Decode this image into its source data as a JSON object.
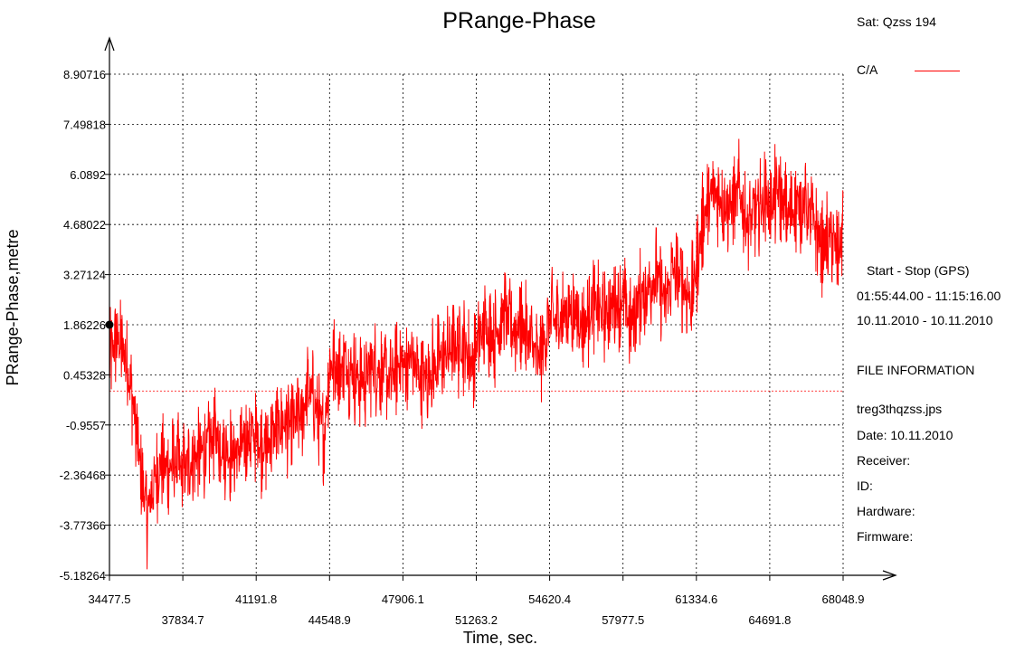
{
  "chart_data": {
    "type": "line",
    "title": "PRange-Phase",
    "xlabel": "Time, sec.",
    "ylabel": "PRange-Phase,metre",
    "xlim": [
      34477.5,
      68048.9
    ],
    "ylim": [
      -5.18264,
      8.90716
    ],
    "grid": true,
    "x_ticks": [
      34477.5,
      37834.7,
      41191.8,
      44548.9,
      47906.1,
      51263.2,
      54620.4,
      57977.5,
      61334.6,
      64691.8,
      68048.9
    ],
    "x_tick_labels": [
      "34477.5",
      "37834.7",
      "41191.8",
      "44548.9",
      "47906.1",
      "51263.2",
      "54620.4",
      "57977.5",
      "61334.6",
      "64691.8",
      "68048.9"
    ],
    "y_ticks": [
      8.90716,
      7.49818,
      6.0892,
      4.68022,
      3.27124,
      1.86226,
      0.45328,
      -0.9557,
      -2.36468,
      -3.77366,
      -5.18264
    ],
    "y_tick_labels": [
      "8.90716",
      "7.49818",
      "6.0892",
      "4.68022",
      "3.27124",
      "1.86226",
      "0.45328",
      "-0.9557",
      "-2.36468",
      "-3.77366",
      "-5.18264"
    ],
    "series": [
      {
        "name": "C/A",
        "color": "#ff0000",
        "x": [
          34477.5,
          34800,
          35200,
          35600,
          35900,
          36200,
          36500,
          36800,
          37100,
          37500,
          37834.7,
          38200,
          38600,
          39000,
          39400,
          39800,
          40200,
          40600,
          41000,
          41191.8,
          41600,
          42000,
          42400,
          42800,
          43200,
          43600,
          44000,
          44300,
          44548.9,
          44900,
          45300,
          45700,
          46100,
          46500,
          46900,
          47300,
          47700,
          47906.1,
          48300,
          48700,
          49100,
          49500,
          49900,
          50300,
          50700,
          51100,
          51263.2,
          51700,
          52100,
          52500,
          52900,
          53300,
          53700,
          54100,
          54620.4,
          55000,
          55400,
          55800,
          56200,
          56600,
          57000,
          57400,
          57977.5,
          58300,
          58700,
          59100,
          59500,
          59900,
          60300,
          60700,
          61100,
          61334.6,
          61700,
          62100,
          62500,
          62900,
          63300,
          63700,
          64100,
          64500,
          64691.8,
          65100,
          65500,
          65900,
          66300,
          66700,
          67100,
          67500,
          67800,
          68048.9
        ],
        "y": [
          0.8,
          1.5,
          1.0,
          -0.5,
          -2.2,
          -3.5,
          -2.5,
          -2.0,
          -2.2,
          -2.0,
          -2.3,
          -2.0,
          -1.8,
          -1.5,
          -1.3,
          -1.6,
          -1.8,
          -1.5,
          -1.2,
          -1.4,
          -1.6,
          -1.2,
          -0.9,
          -1.0,
          -0.8,
          0.1,
          -0.6,
          -1.2,
          0.8,
          0.6,
          0.7,
          0.5,
          0.3,
          0.7,
          0.6,
          0.2,
          0.8,
          0.7,
          0.9,
          0.3,
          0.5,
          0.8,
          1.1,
          1.2,
          1.3,
          0.8,
          1.3,
          1.8,
          1.5,
          2.2,
          1.7,
          1.9,
          1.4,
          0.8,
          2.0,
          1.9,
          2.3,
          2.2,
          1.8,
          2.5,
          2.1,
          2.4,
          2.6,
          1.8,
          2.6,
          2.9,
          3.3,
          2.5,
          3.4,
          3.0,
          2.6,
          3.5,
          5.0,
          5.6,
          5.4,
          5.1,
          5.6,
          4.6,
          5.1,
          5.4,
          5.2,
          5.6,
          4.9,
          5.2,
          5.3,
          4.7,
          4.0,
          4.4,
          3.8,
          4.5
        ]
      }
    ],
    "markers": [
      {
        "x": 34477.5,
        "y": 1.86226
      }
    ]
  },
  "legend": {
    "sat_label": "Sat: Qzss  194",
    "series_label": "C/A",
    "color": "#ff0000"
  },
  "info": {
    "start_stop_title": "Start  -  Stop  (GPS)",
    "time_range": "01:55:44.00 - 11:15:16.00",
    "date_range": "10.11.2010 - 10.11.2010",
    "file_info_title": "FILE INFORMATION",
    "file_name": "treg3thqzss.jps",
    "date": "Date: 10.11.2010",
    "receiver": "Receiver:",
    "id": "ID:",
    "hardware": "Hardware:",
    "firmware": "Firmware:"
  }
}
